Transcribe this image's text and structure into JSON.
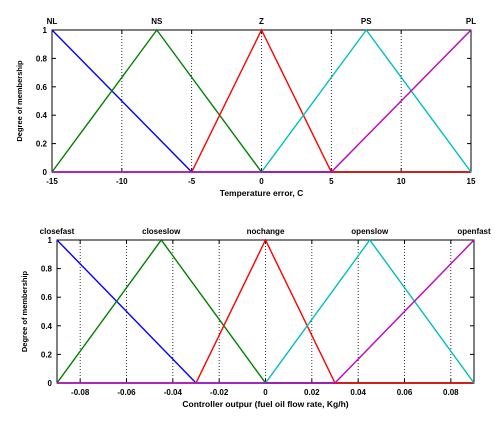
{
  "chart_data": [
    {
      "type": "line",
      "title": "",
      "xlabel": "Temperature error, C",
      "ylabel": "Degree of membership",
      "xlim": [
        -15,
        15
      ],
      "ylim": [
        0,
        1
      ],
      "grid": "vertical dotted",
      "xticks": [
        -15,
        -10,
        -5,
        0,
        5,
        10,
        15
      ],
      "xtick_labels": [
        "-15",
        "-10",
        "-5",
        "0",
        "5",
        "10",
        "15"
      ],
      "yticks": [
        0,
        0.2,
        0.4,
        0.6,
        0.8,
        1
      ],
      "ytick_labels": [
        "0",
        "0.2",
        "0.4",
        "0.6",
        "0.8",
        "1"
      ],
      "series": [
        {
          "name": "NL",
          "color": "#0000ff",
          "x": [
            -15,
            -5,
            15
          ],
          "y": [
            1,
            0,
            0
          ]
        },
        {
          "name": "NS",
          "color": "#008000",
          "x": [
            -15,
            -7.5,
            0,
            15
          ],
          "y": [
            0,
            1,
            0,
            0
          ]
        },
        {
          "name": "Z",
          "color": "#ff0000",
          "x": [
            -15,
            -5,
            0,
            5,
            15
          ],
          "y": [
            0,
            0,
            1,
            0,
            0
          ]
        },
        {
          "name": "PS",
          "color": "#00bfbf",
          "x": [
            -15,
            0,
            7.5,
            15
          ],
          "y": [
            0,
            0,
            1,
            0
          ]
        },
        {
          "name": "PL",
          "color": "#bf00bf",
          "x": [
            -15,
            5,
            15
          ],
          "y": [
            0,
            0,
            1
          ]
        }
      ],
      "term_label_x": [
        -15,
        -7.5,
        0,
        7.5,
        15
      ]
    },
    {
      "type": "line",
      "title": "",
      "xlabel": "Controller outpur (fuel oil flow rate, Kg/h)",
      "ylabel": "Degree of membership",
      "xlim": [
        -0.09,
        0.09
      ],
      "ylim": [
        0,
        1
      ],
      "grid": "vertical dotted",
      "xticks": [
        -0.08,
        -0.06,
        -0.04,
        -0.02,
        0,
        0.02,
        0.04,
        0.06,
        0.08
      ],
      "xtick_labels": [
        "-0.08",
        "-0.06",
        "-0.04",
        "-0.02",
        "0",
        "0.02",
        "0.04",
        "0.06",
        "0.08"
      ],
      "yticks": [
        0,
        0.2,
        0.4,
        0.6,
        0.8,
        1
      ],
      "ytick_labels": [
        "0",
        "0.2",
        "0.4",
        "0.6",
        "0.8",
        "1"
      ],
      "series": [
        {
          "name": "closefast",
          "color": "#0000ff",
          "x": [
            -0.09,
            -0.03,
            0.09
          ],
          "y": [
            1,
            0,
            0
          ]
        },
        {
          "name": "closeslow",
          "color": "#008000",
          "x": [
            -0.09,
            -0.045,
            0,
            0.09
          ],
          "y": [
            0,
            1,
            0,
            0
          ]
        },
        {
          "name": "nochange",
          "color": "#ff0000",
          "x": [
            -0.09,
            -0.03,
            0,
            0.03,
            0.09
          ],
          "y": [
            0,
            0,
            1,
            0,
            0
          ]
        },
        {
          "name": "openslow",
          "color": "#00bfbf",
          "x": [
            -0.09,
            0,
            0.045,
            0.09
          ],
          "y": [
            0,
            0,
            1,
            0
          ]
        },
        {
          "name": "openfast",
          "color": "#bf00bf",
          "x": [
            -0.09,
            0.03,
            0.09
          ],
          "y": [
            0,
            0,
            1
          ]
        }
      ],
      "term_label_x": [
        -0.09,
        -0.045,
        0,
        0.045,
        0.09
      ]
    }
  ]
}
